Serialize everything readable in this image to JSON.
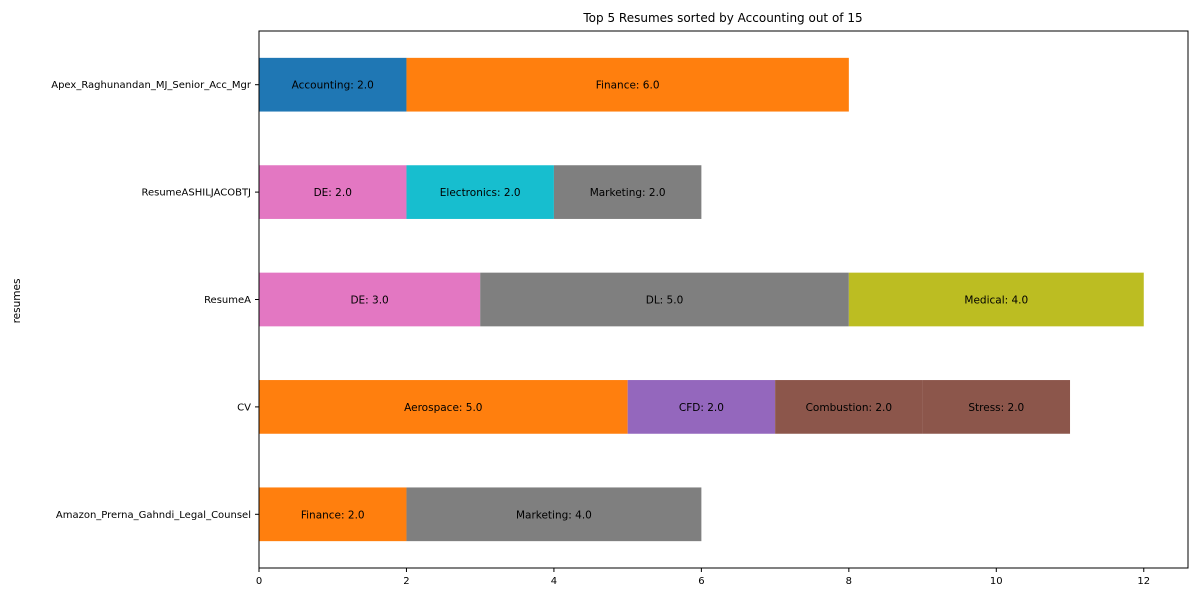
{
  "chart_data": {
    "type": "bar",
    "orientation": "horizontal",
    "stacked": true,
    "title": "Top 5 Resumes sorted by Accounting out of 15",
    "xlabel": "",
    "ylabel": "resumes",
    "xlim": [
      0,
      12.6
    ],
    "xticks": [
      0,
      2,
      4,
      6,
      8,
      10,
      12
    ],
    "grid": false,
    "legend": "none",
    "categories": [
      "Apex_Raghunandan_MJ_Senior_Acc_Mgr",
      "ResumeASHILJACOBTJ",
      "ResumeA",
      "CV",
      "Amazon_Prerna_Gahndi_Legal_Counsel"
    ],
    "rows": [
      {
        "resume": "Apex_Raghunandan_MJ_Senior_Acc_Mgr",
        "segments": [
          {
            "skill": "Accounting",
            "value": 2.0,
            "label": "Accounting: 2.0",
            "color": "#1f77b4"
          },
          {
            "skill": "Finance",
            "value": 6.0,
            "label": "Finance: 6.0",
            "color": "#ff7f0e"
          }
        ]
      },
      {
        "resume": "ResumeASHILJACOBTJ",
        "segments": [
          {
            "skill": "DE",
            "value": 2.0,
            "label": "DE: 2.0",
            "color": "#e377c2"
          },
          {
            "skill": "Electronics",
            "value": 2.0,
            "label": "Electronics: 2.0",
            "color": "#17becf"
          },
          {
            "skill": "Marketing",
            "value": 2.0,
            "label": "Marketing: 2.0",
            "color": "#7f7f7f"
          }
        ]
      },
      {
        "resume": "ResumeA",
        "segments": [
          {
            "skill": "DE",
            "value": 3.0,
            "label": "DE: 3.0",
            "color": "#e377c2"
          },
          {
            "skill": "DL",
            "value": 5.0,
            "label": "DL: 5.0",
            "color": "#7f7f7f"
          },
          {
            "skill": "Medical",
            "value": 4.0,
            "label": "Medical: 4.0",
            "color": "#bcbd22"
          }
        ]
      },
      {
        "resume": "CV",
        "segments": [
          {
            "skill": "Aerospace",
            "value": 5.0,
            "label": "Aerospace: 5.0",
            "color": "#ff7f0e"
          },
          {
            "skill": "CFD",
            "value": 2.0,
            "label": "CFD: 2.0",
            "color": "#9467bd"
          },
          {
            "skill": "Combustion",
            "value": 2.0,
            "label": "Combustion: 2.0",
            "color": "#8c564b"
          },
          {
            "skill": "Stress",
            "value": 2.0,
            "label": "Stress: 2.0",
            "color": "#8c564b"
          }
        ]
      },
      {
        "resume": "Amazon_Prerna_Gahndi_Legal_Counsel",
        "segments": [
          {
            "skill": "Finance",
            "value": 2.0,
            "label": "Finance: 2.0",
            "color": "#ff7f0e"
          },
          {
            "skill": "Marketing",
            "value": 4.0,
            "label": "Marketing: 4.0",
            "color": "#7f7f7f"
          }
        ]
      }
    ]
  }
}
